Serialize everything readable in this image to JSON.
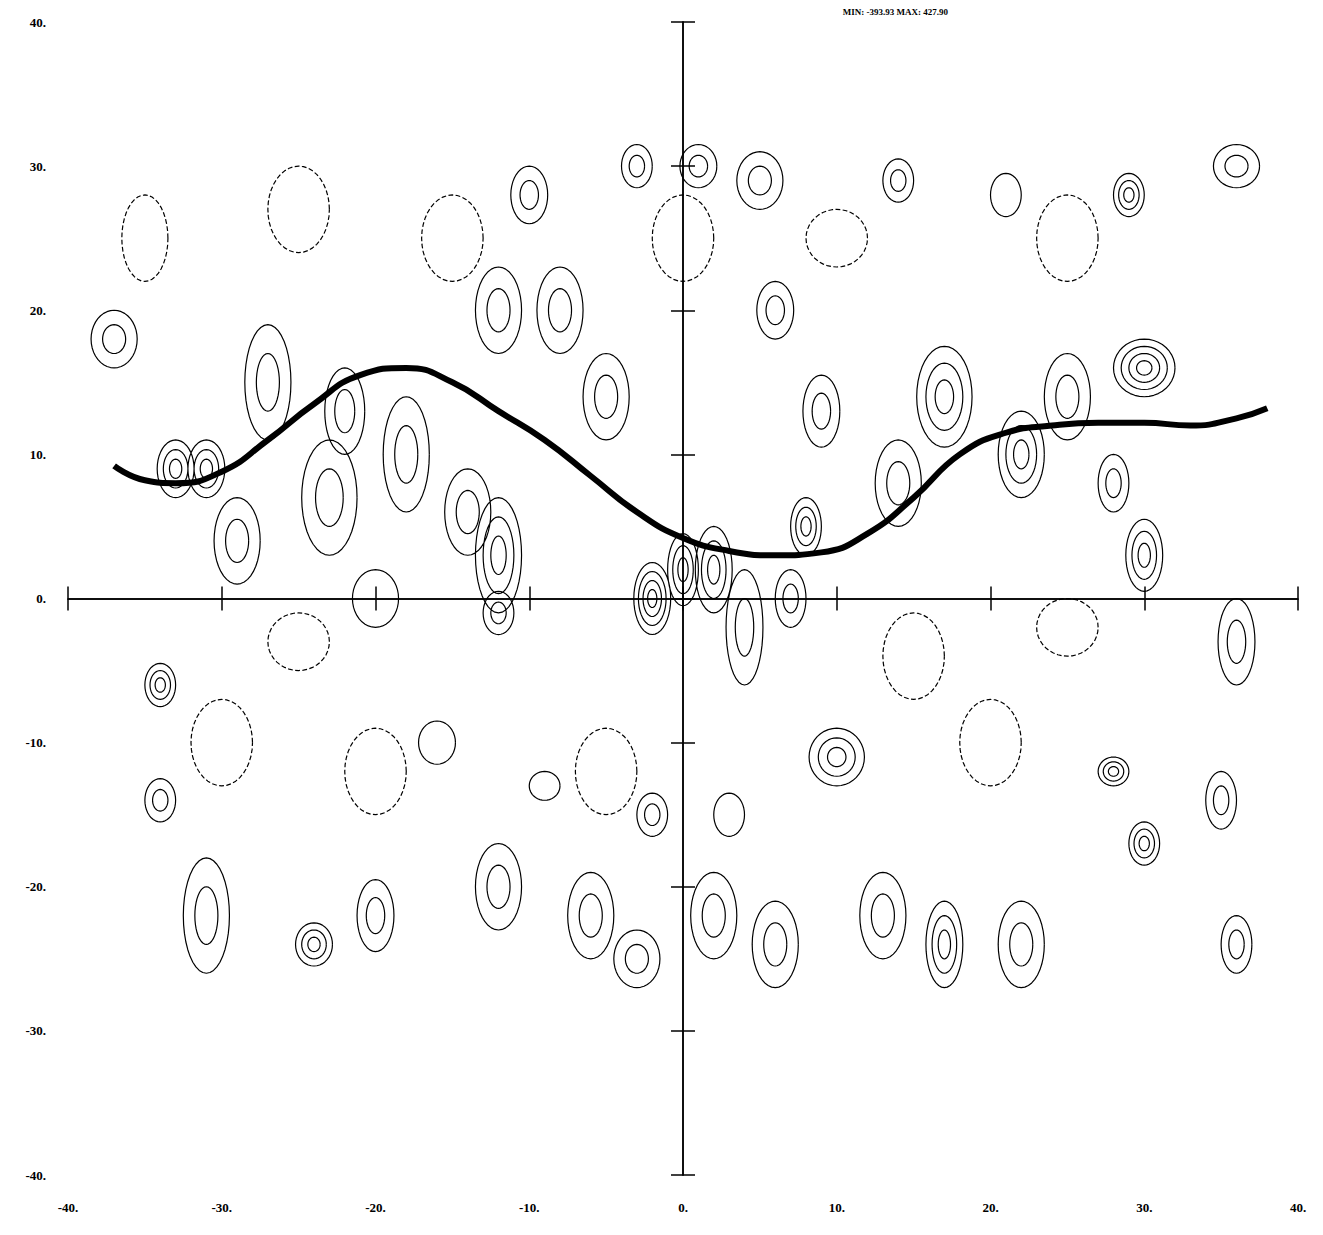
{
  "chart_data": {
    "type": "contour",
    "subtitle": "MIN: -393.93 MAX: 427.90",
    "xlim": [
      -40,
      40
    ],
    "ylim": [
      -40,
      40
    ],
    "xticks": [
      {
        "value": -40,
        "label": "-40."
      },
      {
        "value": -30,
        "label": "-30."
      },
      {
        "value": -20,
        "label": "-20."
      },
      {
        "value": -10,
        "label": "-10."
      },
      {
        "value": 0,
        "label": "0."
      },
      {
        "value": 10,
        "label": "10."
      },
      {
        "value": 20,
        "label": "20."
      },
      {
        "value": 30,
        "label": "30."
      },
      {
        "value": 40,
        "label": "40."
      }
    ],
    "yticks": [
      {
        "value": -40,
        "label": "-40."
      },
      {
        "value": -30,
        "label": "-30."
      },
      {
        "value": -20,
        "label": "-20."
      },
      {
        "value": -10,
        "label": "-10."
      },
      {
        "value": 0,
        "label": "0."
      },
      {
        "value": 10,
        "label": "10."
      },
      {
        "value": 20,
        "label": "20."
      },
      {
        "value": 30,
        "label": "30."
      },
      {
        "value": 40,
        "label": "40."
      }
    ],
    "grid": false,
    "color": "#000000",
    "curve": {
      "x": [
        -37,
        -35,
        -33,
        -30,
        -27,
        -24,
        -21,
        -18,
        -15,
        -12,
        -9,
        -6,
        -3,
        0,
        3,
        6,
        9,
        12,
        15,
        18,
        21,
        24,
        27,
        30,
        33,
        36,
        38
      ],
      "y": [
        9.2,
        8.2,
        8,
        8.8,
        11,
        13.5,
        15.5,
        16,
        15,
        13,
        11,
        8.5,
        6,
        4.2,
        3.3,
        3,
        3.2,
        4.5,
        7,
        10,
        11.5,
        12,
        12.2,
        12.2,
        12,
        12.5,
        13.2
      ]
    },
    "contours": [
      {
        "x": -37,
        "y": 18,
        "rx": 1.5,
        "ry": 2,
        "levels": 2,
        "line_style": "solid"
      },
      {
        "x": -33,
        "y": 9,
        "rx": 1.2,
        "ry": 2,
        "levels": 3,
        "line_style": "solid"
      },
      {
        "x": -31,
        "y": 9,
        "rx": 1.2,
        "ry": 2,
        "levels": 3,
        "line_style": "solid"
      },
      {
        "x": -29,
        "y": 4,
        "rx": 1.5,
        "ry": 3,
        "levels": 2,
        "line_style": "solid"
      },
      {
        "x": -27,
        "y": 15,
        "rx": 1.5,
        "ry": 4,
        "levels": 2,
        "line_style": "solid"
      },
      {
        "x": -23,
        "y": 7,
        "rx": 1.8,
        "ry": 4,
        "levels": 2,
        "line_style": "solid"
      },
      {
        "x": -20,
        "y": 0,
        "rx": 1.5,
        "ry": 2,
        "levels": 1,
        "line_style": "solid"
      },
      {
        "x": -22,
        "y": 13,
        "rx": 1.3,
        "ry": 3,
        "levels": 2,
        "line_style": "solid"
      },
      {
        "x": -18,
        "y": 10,
        "rx": 1.5,
        "ry": 4,
        "levels": 2,
        "line_style": "solid"
      },
      {
        "x": -14,
        "y": 6,
        "rx": 1.5,
        "ry": 3,
        "levels": 2,
        "line_style": "solid"
      },
      {
        "x": -12,
        "y": 3,
        "rx": 1.5,
        "ry": 4,
        "levels": 3,
        "line_style": "solid"
      },
      {
        "x": -12,
        "y": 20,
        "rx": 1.5,
        "ry": 3,
        "levels": 2,
        "line_style": "solid"
      },
      {
        "x": -12,
        "y": -1,
        "rx": 1,
        "ry": 1.5,
        "levels": 2,
        "line_style": "solid"
      },
      {
        "x": -8,
        "y": 20,
        "rx": 1.5,
        "ry": 3,
        "levels": 2,
        "line_style": "solid"
      },
      {
        "x": -10,
        "y": 28,
        "rx": 1.2,
        "ry": 2,
        "levels": 2,
        "line_style": "solid"
      },
      {
        "x": -5,
        "y": 14,
        "rx": 1.5,
        "ry": 3,
        "levels": 2,
        "line_style": "solid"
      },
      {
        "x": -2,
        "y": 0,
        "rx": 1.2,
        "ry": 2.5,
        "levels": 4,
        "line_style": "solid"
      },
      {
        "x": 0,
        "y": 2,
        "rx": 1,
        "ry": 2.5,
        "levels": 3,
        "line_style": "solid"
      },
      {
        "x": 2,
        "y": 2,
        "rx": 1.2,
        "ry": 3,
        "levels": 3,
        "line_style": "solid"
      },
      {
        "x": 4,
        "y": -2,
        "rx": 1.2,
        "ry": 4,
        "levels": 2,
        "line_style": "solid"
      },
      {
        "x": 7,
        "y": 0,
        "rx": 1,
        "ry": 2,
        "levels": 2,
        "line_style": "solid"
      },
      {
        "x": 8,
        "y": 5,
        "rx": 1,
        "ry": 2,
        "levels": 3,
        "line_style": "solid"
      },
      {
        "x": 10,
        "y": -11,
        "rx": 1.8,
        "ry": 2,
        "levels": 3,
        "line_style": "solid"
      },
      {
        "x": 9,
        "y": 13,
        "rx": 1.2,
        "ry": 2.5,
        "levels": 2,
        "line_style": "solid"
      },
      {
        "x": 14,
        "y": 8,
        "rx": 1.5,
        "ry": 3,
        "levels": 2,
        "line_style": "solid"
      },
      {
        "x": 17,
        "y": 14,
        "rx": 1.8,
        "ry": 3.5,
        "levels": 3,
        "line_style": "solid"
      },
      {
        "x": 22,
        "y": 10,
        "rx": 1.5,
        "ry": 3,
        "levels": 3,
        "line_style": "solid"
      },
      {
        "x": 25,
        "y": 14,
        "rx": 1.5,
        "ry": 3,
        "levels": 2,
        "line_style": "solid"
      },
      {
        "x": 28,
        "y": 8,
        "rx": 1,
        "ry": 2,
        "levels": 2,
        "line_style": "solid"
      },
      {
        "x": 30,
        "y": 3,
        "rx": 1.2,
        "ry": 2.5,
        "levels": 3,
        "line_style": "solid"
      },
      {
        "x": 30,
        "y": 16,
        "rx": 2,
        "ry": 2,
        "levels": 4,
        "line_style": "solid"
      },
      {
        "x": 29,
        "y": 28,
        "rx": 1,
        "ry": 1.5,
        "levels": 3,
        "line_style": "solid"
      },
      {
        "x": 36,
        "y": -3,
        "rx": 1.2,
        "ry": 3,
        "levels": 2,
        "line_style": "solid"
      },
      {
        "x": -34,
        "y": -6,
        "rx": 1,
        "ry": 1.5,
        "levels": 3,
        "line_style": "solid"
      },
      {
        "x": -34,
        "y": -14,
        "rx": 1,
        "ry": 1.5,
        "levels": 2,
        "line_style": "solid"
      },
      {
        "x": -31,
        "y": -22,
        "rx": 1.5,
        "ry": 4,
        "levels": 2,
        "line_style": "solid"
      },
      {
        "x": -24,
        "y": -24,
        "rx": 1.2,
        "ry": 1.5,
        "levels": 3,
        "line_style": "solid"
      },
      {
        "x": -20,
        "y": -22,
        "rx": 1.2,
        "ry": 2.5,
        "levels": 2,
        "line_style": "solid"
      },
      {
        "x": -12,
        "y": -20,
        "rx": 1.5,
        "ry": 3,
        "levels": 2,
        "line_style": "solid"
      },
      {
        "x": -6,
        "y": -22,
        "rx": 1.5,
        "ry": 3,
        "levels": 2,
        "line_style": "solid"
      },
      {
        "x": -3,
        "y": -25,
        "rx": 1.5,
        "ry": 2,
        "levels": 2,
        "line_style": "solid"
      },
      {
        "x": 2,
        "y": -22,
        "rx": 1.5,
        "ry": 3,
        "levels": 2,
        "line_style": "solid"
      },
      {
        "x": 6,
        "y": -24,
        "rx": 1.5,
        "ry": 3,
        "levels": 2,
        "line_style": "solid"
      },
      {
        "x": 13,
        "y": -22,
        "rx": 1.5,
        "ry": 3,
        "levels": 2,
        "line_style": "solid"
      },
      {
        "x": 17,
        "y": -24,
        "rx": 1.2,
        "ry": 3,
        "levels": 3,
        "line_style": "solid"
      },
      {
        "x": 22,
        "y": -24,
        "rx": 1.5,
        "ry": 3,
        "levels": 2,
        "line_style": "solid"
      },
      {
        "x": 28,
        "y": -12,
        "rx": 1,
        "ry": 1,
        "levels": 3,
        "line_style": "solid"
      },
      {
        "x": 30,
        "y": -17,
        "rx": 1,
        "ry": 1.5,
        "levels": 3,
        "line_style": "solid"
      },
      {
        "x": 35,
        "y": -14,
        "rx": 1,
        "ry": 2,
        "levels": 2,
        "line_style": "solid"
      },
      {
        "x": 36,
        "y": -24,
        "rx": 1,
        "ry": 2,
        "levels": 2,
        "line_style": "solid"
      },
      {
        "x": -16,
        "y": -10,
        "rx": 1.2,
        "ry": 1.5,
        "levels": 1,
        "line_style": "solid"
      },
      {
        "x": -9,
        "y": -13,
        "rx": 1,
        "ry": 1,
        "levels": 1,
        "line_style": "solid"
      },
      {
        "x": 1,
        "y": 30,
        "rx": 1.2,
        "ry": 1.5,
        "levels": 2,
        "line_style": "solid"
      },
      {
        "x": 5,
        "y": 29,
        "rx": 1.5,
        "ry": 2,
        "levels": 2,
        "line_style": "solid"
      },
      {
        "x": 14,
        "y": 29,
        "rx": 1,
        "ry": 1.5,
        "levels": 2,
        "line_style": "solid"
      },
      {
        "x": 36,
        "y": 30,
        "rx": 1.5,
        "ry": 1.5,
        "levels": 2,
        "line_style": "solid"
      },
      {
        "x": -3,
        "y": 30,
        "rx": 1,
        "ry": 1.5,
        "levels": 2,
        "line_style": "solid"
      },
      {
        "x": 21,
        "y": 28,
        "rx": 1,
        "ry": 1.5,
        "levels": 1,
        "line_style": "solid"
      },
      {
        "x": 6,
        "y": 20,
        "rx": 1.2,
        "ry": 2,
        "levels": 2,
        "line_style": "solid"
      },
      {
        "x": -2,
        "y": -15,
        "rx": 1,
        "ry": 1.5,
        "levels": 2,
        "line_style": "solid"
      },
      {
        "x": 3,
        "y": -15,
        "rx": 1,
        "ry": 1.5,
        "levels": 1,
        "line_style": "solid"
      },
      {
        "x": -25,
        "y": 27,
        "rx": 2,
        "ry": 3,
        "levels": 1,
        "line_style": "dashed"
      },
      {
        "x": -30,
        "y": -10,
        "rx": 2,
        "ry": 3,
        "levels": 1,
        "line_style": "dashed"
      },
      {
        "x": -20,
        "y": -12,
        "rx": 2,
        "ry": 3,
        "levels": 1,
        "line_style": "dashed"
      },
      {
        "x": -5,
        "y": -12,
        "rx": 2,
        "ry": 3,
        "levels": 1,
        "line_style": "dashed"
      },
      {
        "x": 15,
        "y": -4,
        "rx": 2,
        "ry": 3,
        "levels": 1,
        "line_style": "dashed"
      },
      {
        "x": 20,
        "y": -10,
        "rx": 2,
        "ry": 3,
        "levels": 1,
        "line_style": "dashed"
      },
      {
        "x": 0,
        "y": 25,
        "rx": 2,
        "ry": 3,
        "levels": 1,
        "line_style": "dashed"
      },
      {
        "x": 25,
        "y": 25,
        "rx": 2,
        "ry": 3,
        "levels": 1,
        "line_style": "dashed"
      },
      {
        "x": -15,
        "y": 25,
        "rx": 2,
        "ry": 3,
        "levels": 1,
        "line_style": "dashed"
      },
      {
        "x": 10,
        "y": 25,
        "rx": 2,
        "ry": 2,
        "levels": 1,
        "line_style": "dashed"
      },
      {
        "x": -35,
        "y": 25,
        "rx": 1.5,
        "ry": 3,
        "levels": 1,
        "line_style": "dashed"
      },
      {
        "x": 25,
        "y": -2,
        "rx": 2,
        "ry": 2,
        "levels": 1,
        "line_style": "dashed"
      },
      {
        "x": -25,
        "y": -3,
        "rx": 2,
        "ry": 2,
        "levels": 1,
        "line_style": "dashed"
      }
    ]
  }
}
